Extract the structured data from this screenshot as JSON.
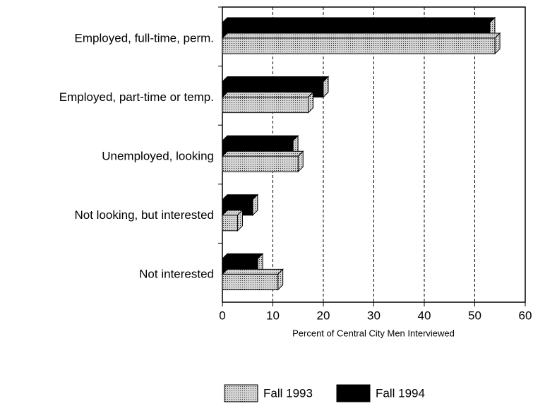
{
  "chart_data": {
    "type": "barh",
    "x_label": "Percent of Central City Men Interviewed",
    "categories": [
      "Employed, full-time, perm.",
      "Employed, part-time or temp.",
      "Unemployed, looking",
      "Not looking, but interested",
      "Not interested"
    ],
    "series": [
      {
        "name": "Fall 1993",
        "color": "#d4d4d4",
        "values": [
          54,
          17,
          15,
          3,
          11
        ]
      },
      {
        "name": "Fall 1994",
        "color": "#000000",
        "values": [
          53,
          20,
          14,
          6,
          7
        ]
      }
    ],
    "xlim": [
      0,
      60
    ],
    "xticks": [
      0,
      10,
      20,
      30,
      40,
      50,
      60
    ],
    "grid": true
  }
}
